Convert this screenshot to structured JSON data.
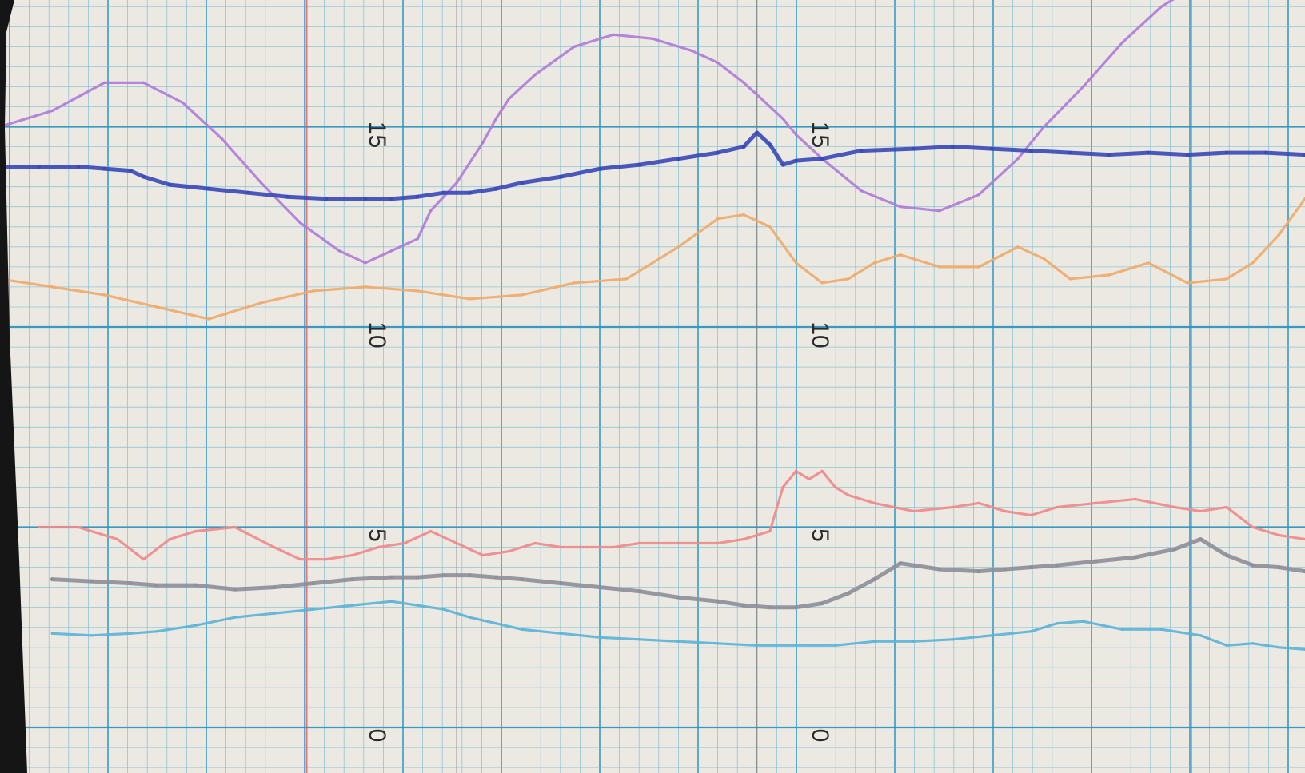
{
  "chart_data": {
    "type": "line",
    "title": "",
    "xlabel": "",
    "ylabel": "",
    "ylim": [
      -0.5,
      19
    ],
    "xlim": [
      0,
      100
    ],
    "grid": true,
    "y_label_columns": [
      {
        "ticks": [
          15,
          10,
          5,
          0
        ],
        "labels": [
          "15",
          "10",
          "5",
          "0"
        ]
      },
      {
        "ticks": [
          15,
          10,
          5,
          0
        ],
        "labels": [
          "15",
          "10",
          "5",
          "0"
        ]
      }
    ],
    "series": [
      {
        "color": "#b07ad8",
        "values_x": [
          0,
          4,
          8,
          11,
          14,
          17,
          20,
          23,
          26,
          28,
          30,
          32,
          33,
          35,
          37,
          38,
          39,
          41,
          44,
          47,
          50,
          53,
          55,
          57,
          58,
          59,
          60,
          61,
          63,
          66,
          69,
          72,
          75,
          78,
          80,
          83,
          86,
          89,
          92,
          95,
          98,
          100
        ],
        "values_y": [
          15.0,
          15.4,
          16.1,
          16.1,
          15.6,
          14.7,
          13.6,
          12.6,
          11.9,
          11.6,
          11.9,
          12.2,
          12.9,
          13.6,
          14.6,
          15.2,
          15.7,
          16.3,
          17.0,
          17.3,
          17.2,
          16.9,
          16.6,
          16.1,
          15.8,
          15.5,
          15.2,
          14.8,
          14.2,
          13.4,
          13.0,
          12.9,
          13.3,
          14.2,
          15.0,
          16.0,
          17.1,
          18.0,
          18.6,
          18.9,
          18.9,
          19.0
        ]
      },
      {
        "color": "#3848b8",
        "values_x": [
          0,
          3,
          6,
          8,
          10,
          11,
          13,
          16,
          19,
          22,
          25,
          28,
          30,
          32,
          34,
          36,
          38,
          40,
          43,
          46,
          49,
          52,
          55,
          57,
          58,
          59,
          60,
          61,
          63,
          66,
          70,
          73,
          76,
          79,
          82,
          85,
          88,
          91,
          94,
          97,
          100
        ],
        "values_y": [
          14.0,
          14.0,
          14.0,
          13.95,
          13.9,
          13.75,
          13.55,
          13.45,
          13.35,
          13.25,
          13.2,
          13.2,
          13.2,
          13.25,
          13.35,
          13.35,
          13.45,
          13.6,
          13.75,
          13.95,
          14.05,
          14.2,
          14.35,
          14.5,
          14.85,
          14.55,
          14.05,
          14.15,
          14.2,
          14.4,
          14.45,
          14.5,
          14.45,
          14.4,
          14.35,
          14.3,
          14.35,
          14.3,
          14.35,
          14.35,
          14.3
        ]
      },
      {
        "color": "#f0aa6a",
        "values_x": [
          0,
          4,
          8,
          12,
          16,
          20,
          24,
          28,
          32,
          36,
          40,
          44,
          48,
          52,
          55,
          57,
          59,
          61,
          63,
          65,
          67,
          69,
          72,
          75,
          78,
          80,
          82,
          85,
          88,
          91,
          94,
          96,
          98,
          100
        ],
        "values_y": [
          11.2,
          11.0,
          10.8,
          10.5,
          10.2,
          10.6,
          10.9,
          11.0,
          10.9,
          10.7,
          10.8,
          11.1,
          11.2,
          12.0,
          12.7,
          12.8,
          12.5,
          11.6,
          11.1,
          11.2,
          11.6,
          11.8,
          11.5,
          11.5,
          12.0,
          11.7,
          11.2,
          11.3,
          11.6,
          11.1,
          11.2,
          11.6,
          12.3,
          13.2
        ]
      },
      {
        "color": "#f08a8a",
        "values_x": [
          3,
          6,
          9,
          11,
          13,
          15,
          18,
          21,
          23,
          25,
          27,
          29,
          31,
          33,
          35,
          37,
          39,
          41,
          43,
          45,
          47,
          49,
          52,
          55,
          57,
          59,
          60,
          61,
          62,
          63,
          64,
          65,
          67,
          70,
          73,
          75,
          77,
          79,
          81,
          84,
          87,
          90,
          92,
          94,
          96,
          98,
          100
        ],
        "values_y": [
          5.0,
          5.0,
          4.7,
          4.2,
          4.7,
          4.9,
          5.0,
          4.5,
          4.2,
          4.2,
          4.3,
          4.5,
          4.6,
          4.9,
          4.6,
          4.3,
          4.4,
          4.6,
          4.5,
          4.5,
          4.5,
          4.6,
          4.6,
          4.6,
          4.7,
          4.9,
          6.0,
          6.4,
          6.2,
          6.4,
          6.0,
          5.8,
          5.6,
          5.4,
          5.5,
          5.6,
          5.4,
          5.3,
          5.5,
          5.6,
          5.7,
          5.5,
          5.4,
          5.5,
          5.0,
          4.8,
          4.7
        ]
      },
      {
        "color": "#8e8e9a",
        "values_x": [
          4,
          7,
          10,
          12,
          15,
          18,
          21,
          24,
          27,
          30,
          32,
          34,
          36,
          38,
          40,
          43,
          46,
          49,
          52,
          55,
          57,
          59,
          61,
          63,
          65,
          67,
          69,
          72,
          75,
          77,
          79,
          81,
          84,
          87,
          90,
          92,
          94,
          96,
          98,
          100
        ],
        "values_y": [
          3.7,
          3.65,
          3.6,
          3.55,
          3.55,
          3.45,
          3.5,
          3.6,
          3.7,
          3.75,
          3.75,
          3.8,
          3.8,
          3.75,
          3.7,
          3.6,
          3.5,
          3.4,
          3.25,
          3.15,
          3.05,
          3.0,
          3.0,
          3.1,
          3.35,
          3.7,
          4.1,
          3.95,
          3.9,
          3.95,
          4.0,
          4.05,
          4.15,
          4.25,
          4.45,
          4.7,
          4.3,
          4.05,
          4.0,
          3.9
        ]
      },
      {
        "color": "#5ab4d8",
        "values_x": [
          4,
          7,
          10,
          12,
          15,
          18,
          21,
          24,
          27,
          30,
          32,
          34,
          36,
          38,
          40,
          43,
          46,
          49,
          52,
          55,
          58,
          61,
          64,
          67,
          70,
          73,
          76,
          79,
          81,
          83,
          86,
          89,
          92,
          94,
          96,
          98,
          100
        ],
        "values_y": [
          2.35,
          2.3,
          2.35,
          2.4,
          2.55,
          2.75,
          2.85,
          2.95,
          3.05,
          3.15,
          3.05,
          2.95,
          2.75,
          2.6,
          2.45,
          2.35,
          2.25,
          2.2,
          2.15,
          2.1,
          2.05,
          2.05,
          2.05,
          2.15,
          2.15,
          2.2,
          2.3,
          2.4,
          2.6,
          2.65,
          2.45,
          2.45,
          2.3,
          2.05,
          2.1,
          2.0,
          1.95
        ]
      }
    ],
    "vertical_markers": [
      {
        "color": "#e85060",
        "x": 23.5
      },
      {
        "color": "#7a7a7a",
        "x": 35.0
      },
      {
        "color": "#7a7a7a",
        "x": 58.0
      },
      {
        "color": "#7a7a7a",
        "x": 91.3
      }
    ]
  },
  "style": {
    "paper": "#ebe9e2",
    "grid_minor": "#7cbcd2",
    "grid_major": "#2f96c2",
    "binding": "#151515"
  }
}
